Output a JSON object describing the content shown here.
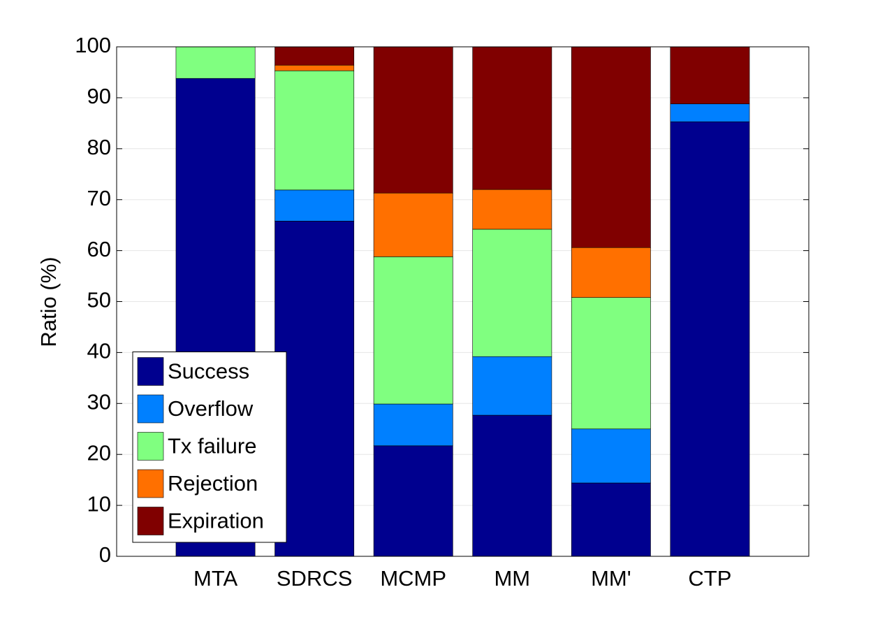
{
  "chart_data": {
    "type": "stacked_bar",
    "ylabel": "Ratio (%)",
    "categories": [
      "MTA",
      "SDRCS",
      "MCMP",
      "MM",
      "MM'",
      "CTP"
    ],
    "series": [
      {
        "name": "Success",
        "color": "#00008f",
        "values": [
          93.8,
          65.8,
          21.7,
          27.7,
          14.4,
          85.3
        ]
      },
      {
        "name": "Overflow",
        "color": "#0080ff",
        "values": [
          0,
          6.1,
          8.2,
          11.5,
          10.6,
          3.5
        ]
      },
      {
        "name": "Tx failure",
        "color": "#80ff80",
        "values": [
          6.2,
          23.4,
          28.9,
          25.0,
          25.8,
          0
        ]
      },
      {
        "name": "Rejection",
        "color": "#ff7000",
        "values": [
          0,
          1.1,
          12.5,
          7.8,
          9.8,
          0
        ]
      },
      {
        "name": "Expiration",
        "color": "#800000",
        "values": [
          0,
          3.6,
          28.7,
          28.0,
          39.4,
          11.2
        ]
      }
    ],
    "ylim": [
      0,
      100
    ],
    "yticks": [
      0,
      10,
      20,
      30,
      40,
      50,
      60,
      70,
      80,
      90,
      100
    ],
    "grid": true,
    "legend": "lower left"
  }
}
